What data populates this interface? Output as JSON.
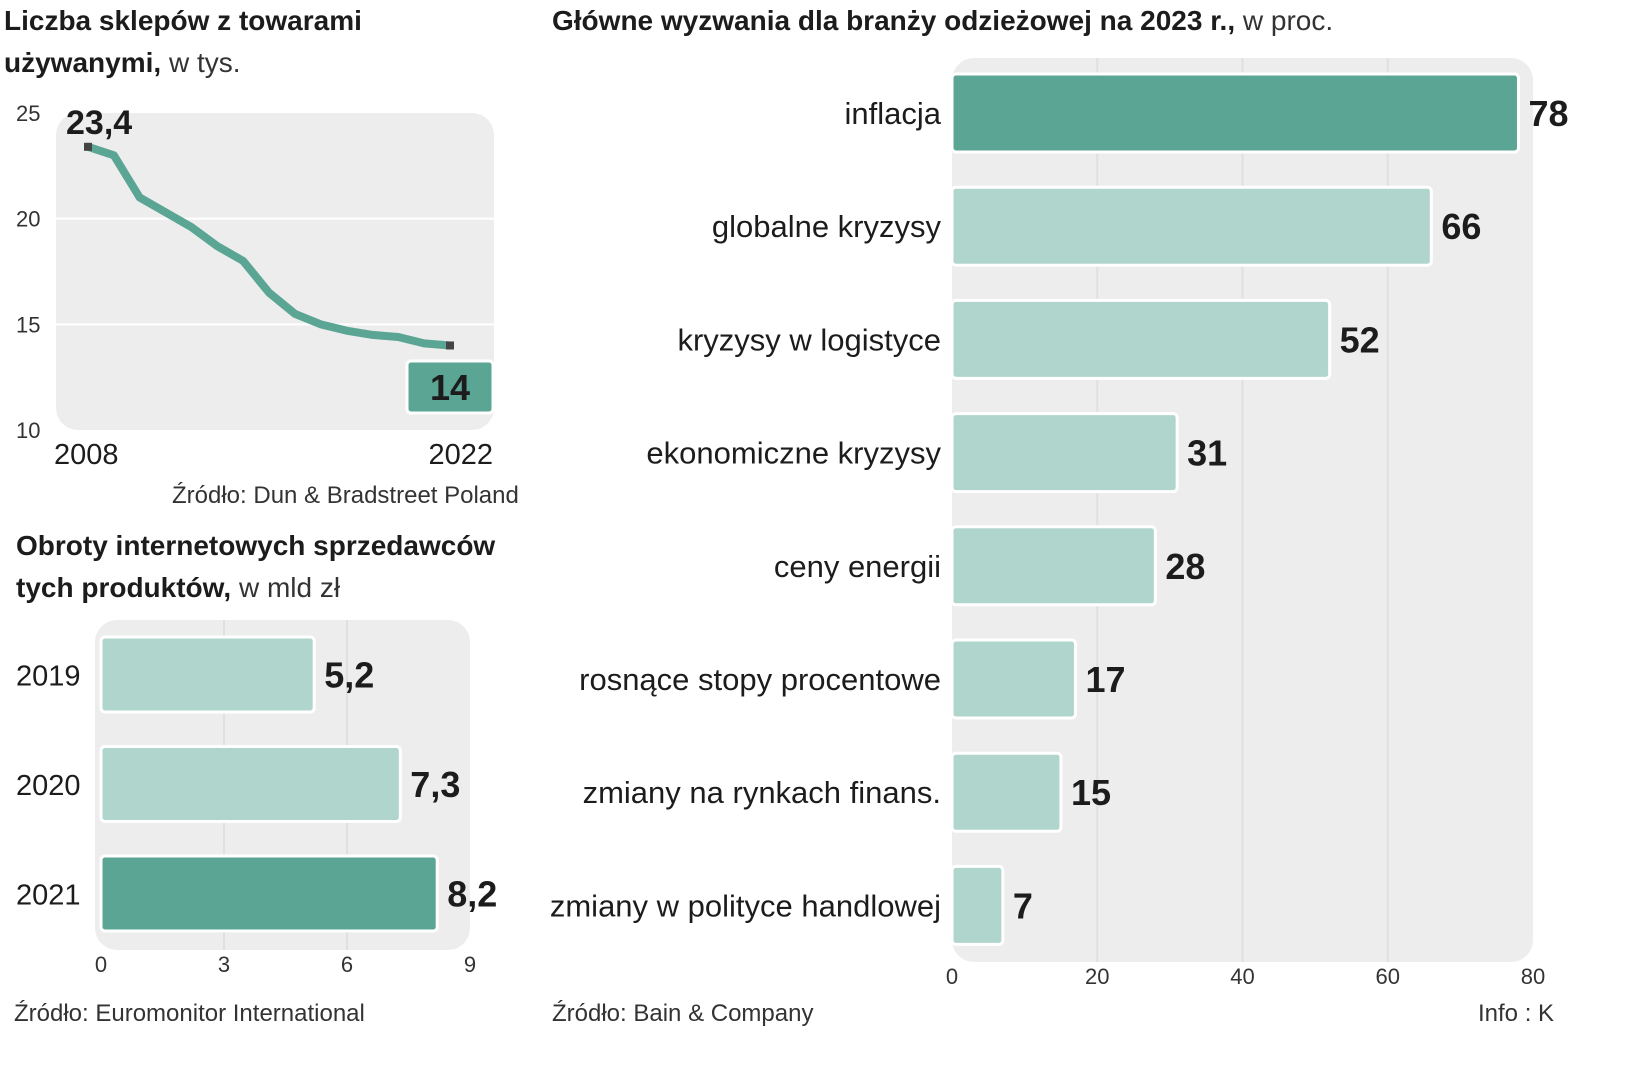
{
  "colors": {
    "highlight": "#5ba595",
    "bar": "#b0d5cc",
    "panel": "#ededed",
    "line": "#5ba595"
  },
  "charts": {
    "shops": {
      "title_bold_1": "Liczba sklepów z towarami",
      "title_bold_2": "używanymi,",
      "title_light": "w tys.",
      "source": "Źródło: Dun & Bradstreet Poland"
    },
    "online": {
      "title_bold_1": "Obroty internetowych sprzedawców",
      "title_bold_2": "tych produktów,",
      "title_light": "w mld zł",
      "source": "Źródło: Euromonitor International"
    },
    "challenges": {
      "title_bold": "Główne wyzwania dla branży odzieżowej na 2023 r.,",
      "title_light": "w proc.",
      "source": "Źródło: Bain & Company",
      "credit": "Info : K"
    }
  },
  "chart_data": [
    {
      "type": "line",
      "title": "Liczba sklepów z towarami używanymi, w tys.",
      "x": [
        2008,
        2009,
        2010,
        2011,
        2012,
        2013,
        2014,
        2015,
        2016,
        2017,
        2018,
        2019,
        2020,
        2021,
        2022
      ],
      "values": [
        23.4,
        23.0,
        21.0,
        20.3,
        19.6,
        18.7,
        18.0,
        16.5,
        15.5,
        15.0,
        14.7,
        14.5,
        14.4,
        14.1,
        14.0
      ],
      "x_tick_labels": [
        "2008",
        "2022"
      ],
      "y_ticks": [
        25,
        20,
        15,
        10
      ],
      "ylim": [
        10,
        25
      ],
      "start_label": "23,4",
      "end_label": "14",
      "xlabel": "",
      "ylabel": ""
    },
    {
      "type": "bar",
      "orientation": "horizontal",
      "title": "Obroty internetowych sprzedawców tych produktów, w mld zł",
      "categories": [
        "2019",
        "2020",
        "2021"
      ],
      "values": [
        5.2,
        7.3,
        8.2
      ],
      "value_labels": [
        "5,2",
        "7,3",
        "8,2"
      ],
      "highlight_index": 2,
      "x_ticks": [
        0,
        3,
        6,
        9
      ],
      "xlim": [
        0,
        9
      ]
    },
    {
      "type": "bar",
      "orientation": "horizontal",
      "title": "Główne wyzwania dla branży odzieżowej na 2023 r., w proc.",
      "categories": [
        "inflacja",
        "globalne kryzysy",
        "kryzysy w logistyce",
        "ekonomiczne kryzysy",
        "ceny energii",
        "rosnące stopy procentowe",
        "zmiany na rynkach finans.",
        "zmiany w polityce handlowej"
      ],
      "values": [
        78,
        66,
        52,
        31,
        28,
        17,
        15,
        7
      ],
      "value_labels": [
        "78",
        "66",
        "52",
        "31",
        "28",
        "17",
        "15",
        "7"
      ],
      "highlight_index": 0,
      "x_ticks": [
        0,
        20,
        40,
        60,
        80
      ],
      "xlim": [
        0,
        80
      ]
    }
  ]
}
